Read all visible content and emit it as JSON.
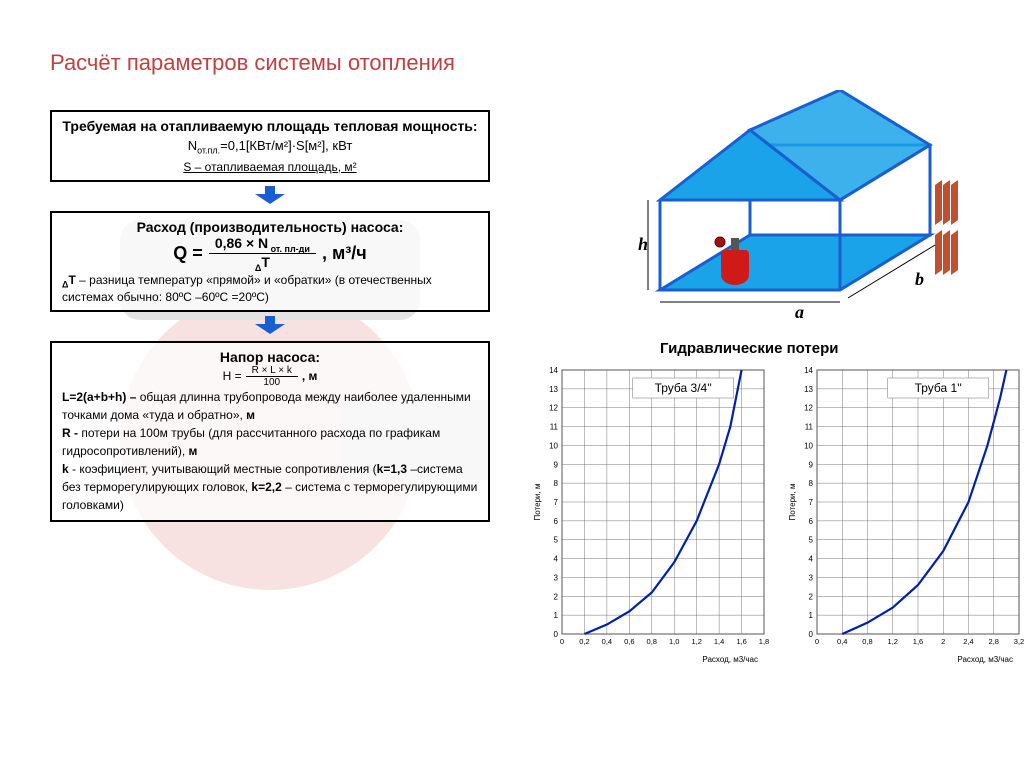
{
  "title": {
    "text": "Расчёт параметров системы отопления",
    "color": "#c04040"
  },
  "boxes": {
    "power": {
      "title": "Требуемая на отапливаемую площадь тепловая мощность:",
      "formula_prefix": "N",
      "formula_sub": "от.пл.",
      "formula_rest": "=0,1[КВт/м²]·S[м²], кВт",
      "note": "S – отапливаемая площадь, м²"
    },
    "flow": {
      "title": "Расход (производительность) насоса:",
      "Q": "Q =",
      "num": "0,86 × N",
      "num_sub": " от. пл-ди",
      "den_pre": "Δ",
      "den": "T",
      "unit": ",  м³/ч",
      "note_pre": "Δ",
      "note_b": "T",
      "note_rest": " – разница температур «прямой» и «обратки» (в отечественных системах обычно: 80ºС –60ºС =20ºС)"
    },
    "head": {
      "title": "Напор насоса:",
      "H": "H =",
      "num": "R × L × k",
      "den": "100",
      "unit": ", м",
      "L_b": "L=2(a+b+h) –",
      "L_rest": " общая длинна трубопровода между наиболее удаленными точками дома «туда и обратно»,  ",
      "L_unit": "м",
      "R_b": "R -",
      "R_rest": " потери на 100м трубы (для рассчитанного расхода по графикам гидросопротивлений),  ",
      "R_unit": "м",
      "k_b": "k",
      "k_rest": " -  коэфициент, учитывающий местные сопротивления (",
      "k13": "k=1,3",
      "k13_rest": " –система без терморегулирующих головок, ",
      "k22": "k=2,2",
      "k22_rest": " – система с терморегулирующими головками)"
    }
  },
  "house": {
    "roof_color": "#1aa3e8",
    "wall_color": "#1a5fd0",
    "floor_color": "#1aa3e8",
    "boiler_color": "#d01a1a",
    "radiator_color": "#c05030",
    "labels": {
      "a": "a",
      "b": "b",
      "h": "h"
    },
    "label_style": {
      "font": "italic bold 18px serif",
      "color": "#000"
    }
  },
  "charts": {
    "section_title": "Гидравлические потери",
    "ylabel": "Потери, м",
    "xlabel": "Расход, м3/час",
    "axis_font": "8px Arial",
    "label_font": "9px Arial",
    "grid_color": "#555",
    "line_color": "#0020aa",
    "line_width": 2.2,
    "bg": "#ffffff",
    "chart1": {
      "title": "Труба 3/4''",
      "xlim": [
        0,
        1.8
      ],
      "xtick_step": 0.2,
      "xticks": [
        "0",
        "0,2",
        "0,4",
        "0,6",
        "0,8",
        "1,0",
        "1,2",
        "1,4",
        "1,6",
        "1,8"
      ],
      "ylim": [
        0,
        14
      ],
      "ytick_step": 1,
      "curve": [
        [
          0.2,
          0
        ],
        [
          0.4,
          0.5
        ],
        [
          0.6,
          1.2
        ],
        [
          0.8,
          2.2
        ],
        [
          1.0,
          3.8
        ],
        [
          1.2,
          6.0
        ],
        [
          1.4,
          9.0
        ],
        [
          1.5,
          11.0
        ],
        [
          1.6,
          14.0
        ]
      ]
    },
    "chart2": {
      "title": "Труба 1''",
      "xlim": [
        0,
        3.2
      ],
      "xtick_step": 0.4,
      "xticks": [
        "0",
        "0,4",
        "0,8",
        "1,2",
        "1,6",
        "2",
        "2,4",
        "2,8",
        "3,2"
      ],
      "ylim": [
        0,
        14
      ],
      "ytick_step": 1,
      "curve": [
        [
          0.4,
          0
        ],
        [
          0.8,
          0.6
        ],
        [
          1.2,
          1.4
        ],
        [
          1.6,
          2.6
        ],
        [
          2.0,
          4.4
        ],
        [
          2.4,
          7.0
        ],
        [
          2.7,
          10.0
        ],
        [
          2.9,
          12.5
        ],
        [
          3.0,
          14.0
        ]
      ]
    }
  },
  "arrow_color": "#1a5fd0"
}
